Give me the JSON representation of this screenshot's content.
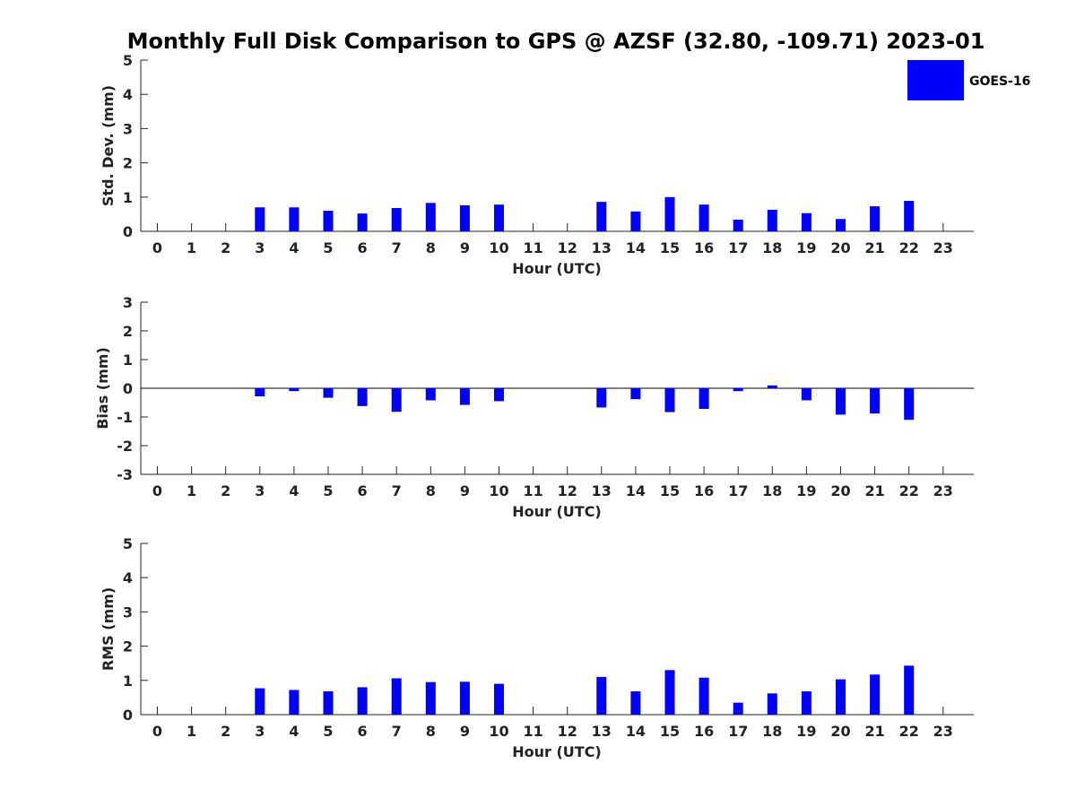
{
  "figure_title": "Monthly Full Disk Comparison to GPS @ AZSF (32.80, -109.71) 2023-01",
  "legend": {
    "label": "GOES-16",
    "color": "#0000ff"
  },
  "chart_data": [
    {
      "type": "bar",
      "ylabel": "Std. Dev. (mm)",
      "xlabel": "Hour (UTC)",
      "ylim": [
        0,
        5
      ],
      "yticks": [
        "0",
        "1",
        "2",
        "3",
        "4",
        "5"
      ],
      "categories": [
        "0",
        "1",
        "2",
        "3",
        "4",
        "5",
        "6",
        "7",
        "8",
        "9",
        "10",
        "11",
        "12",
        "13",
        "14",
        "15",
        "16",
        "17",
        "18",
        "19",
        "20",
        "21",
        "22",
        "23"
      ],
      "series": [
        {
          "name": "GOES-16",
          "color": "#0000ff",
          "values": [
            null,
            null,
            null,
            0.7,
            0.7,
            0.6,
            0.52,
            0.68,
            0.83,
            0.76,
            0.78,
            null,
            null,
            0.86,
            0.58,
            1.0,
            0.78,
            0.34,
            0.63,
            0.53,
            0.36,
            0.73,
            0.89,
            null
          ]
        }
      ]
    },
    {
      "type": "bar",
      "ylabel": "Bias (mm)",
      "xlabel": "Hour (UTC)",
      "ylim": [
        -3,
        3
      ],
      "yticks": [
        "-3",
        "-2",
        "-1",
        "0",
        "1",
        "2",
        "3"
      ],
      "zero_line": true,
      "categories": [
        "0",
        "1",
        "2",
        "3",
        "4",
        "5",
        "6",
        "7",
        "8",
        "9",
        "10",
        "11",
        "12",
        "13",
        "14",
        "15",
        "16",
        "17",
        "18",
        "19",
        "20",
        "21",
        "22",
        "23"
      ],
      "series": [
        {
          "name": "GOES-16",
          "color": "#0000ff",
          "values": [
            null,
            null,
            null,
            -0.28,
            -0.1,
            -0.33,
            -0.62,
            -0.82,
            -0.42,
            -0.58,
            -0.45,
            null,
            null,
            -0.67,
            -0.38,
            -0.83,
            -0.72,
            -0.1,
            0.1,
            -0.42,
            -0.92,
            -0.88,
            -1.1,
            null
          ]
        }
      ]
    },
    {
      "type": "bar",
      "ylabel": "RMS (mm)",
      "xlabel": "Hour (UTC)",
      "ylim": [
        0,
        5
      ],
      "yticks": [
        "0",
        "1",
        "2",
        "3",
        "4",
        "5"
      ],
      "categories": [
        "0",
        "1",
        "2",
        "3",
        "4",
        "5",
        "6",
        "7",
        "8",
        "9",
        "10",
        "11",
        "12",
        "13",
        "14",
        "15",
        "16",
        "17",
        "18",
        "19",
        "20",
        "21",
        "22",
        "23"
      ],
      "series": [
        {
          "name": "GOES-16",
          "color": "#0000ff",
          "values": [
            null,
            null,
            null,
            0.77,
            0.72,
            0.68,
            0.8,
            1.06,
            0.95,
            0.96,
            0.9,
            null,
            null,
            1.1,
            0.68,
            1.3,
            1.08,
            0.35,
            0.62,
            0.68,
            1.03,
            1.17,
            1.43,
            null
          ]
        }
      ]
    }
  ]
}
